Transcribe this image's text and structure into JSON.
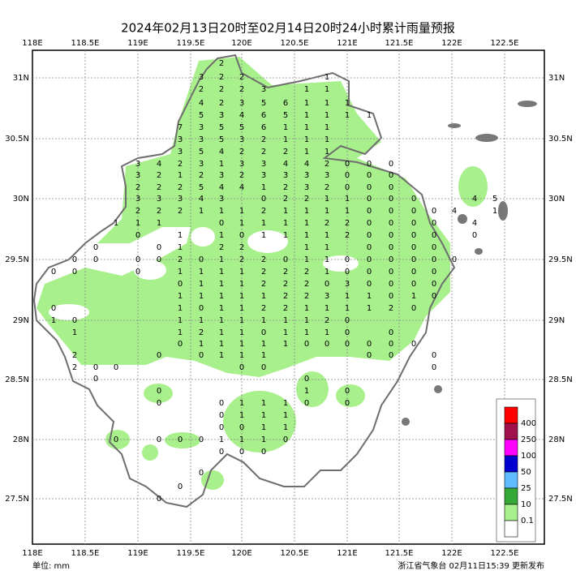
{
  "header": {
    "title": "2024年02月13日20时至02月14日20时24小时累计雨量预报"
  },
  "footer": {
    "unit": "单位: mm",
    "issuer": "浙江省气象台 02月11日15:39 更新发布"
  },
  "lon_ticks": [
    "118E",
    "118.5E",
    "119E",
    "119.5E",
    "120E",
    "120.5E",
    "121E",
    "121.5E",
    "122E",
    "122.5E"
  ],
  "lat_ticks": [
    "31N",
    "30.5N",
    "30N",
    "29.5N",
    "29N",
    "28.5N",
    "28N",
    "27.5N"
  ],
  "legend": {
    "colors": [
      "#ff0000",
      "#a0104a",
      "#ff00ff",
      "#0000d0",
      "#60bcff",
      "#36a836",
      "#a8f08c",
      "#ffffff"
    ],
    "levels": [
      400,
      250,
      100,
      50,
      25,
      10,
      0.1
    ]
  },
  "stations": [
    [
      2
    ],
    [
      3,
      2,
      2,
      1
    ],
    [
      2,
      2,
      2,
      3,
      1,
      1
    ],
    [
      4,
      2,
      3,
      5,
      6,
      1,
      1,
      1
    ],
    [
      5,
      3,
      4,
      6,
      5,
      1,
      1,
      1,
      1
    ],
    [
      7,
      3,
      5,
      5,
      6,
      1,
      1,
      1
    ],
    [
      3,
      3,
      5,
      3,
      2,
      1,
      1,
      1
    ],
    [
      3,
      5,
      4,
      2,
      2,
      2,
      1,
      1
    ],
    [
      3,
      4,
      2,
      3,
      1,
      3,
      3,
      4,
      4,
      2,
      0,
      0,
      0
    ],
    [
      3,
      2,
      1,
      2,
      3,
      2,
      3,
      3,
      3,
      3,
      0,
      0,
      0
    ],
    [
      2,
      2,
      2,
      5,
      4,
      4,
      1,
      2,
      3,
      2,
      0,
      0,
      0
    ],
    [
      3,
      3,
      3,
      4,
      3,
      0,
      2,
      2,
      1,
      1,
      0,
      0,
      0,
      4,
      5
    ],
    [
      2,
      2,
      2,
      1,
      1,
      1,
      2,
      1,
      1,
      1,
      1,
      0,
      0,
      0,
      0,
      4,
      1
    ],
    [
      1,
      1,
      1,
      0,
      1,
      1,
      1,
      1,
      2,
      2,
      0,
      0,
      0,
      0,
      4
    ],
    [
      0,
      1,
      1,
      0,
      1,
      1,
      1,
      1,
      2,
      0,
      0,
      0,
      0,
      0
    ],
    [
      0,
      0,
      1,
      2,
      2,
      1,
      1,
      0,
      0,
      0,
      0
    ],
    [
      0,
      0,
      0,
      0,
      2,
      0,
      1,
      2,
      2,
      0,
      1,
      1,
      0,
      0,
      0,
      0,
      0,
      0
    ],
    [
      0,
      0,
      0,
      1,
      1,
      1,
      1,
      2,
      2,
      2,
      1,
      0,
      0,
      0,
      0,
      0
    ],
    [
      0,
      1,
      1,
      1,
      2,
      2,
      2,
      0,
      3,
      0,
      0,
      0,
      0
    ],
    [
      1,
      1,
      1,
      1,
      1,
      2,
      2,
      3,
      1,
      1,
      0,
      1,
      0
    ],
    [
      0,
      1,
      0,
      1,
      1,
      2,
      2,
      1,
      1,
      1,
      1,
      2,
      0
    ],
    [
      1,
      0,
      1,
      1,
      1,
      1,
      1,
      1,
      1,
      2,
      0
    ],
    [
      1,
      1,
      2,
      1,
      1,
      0,
      1,
      1,
      1,
      0,
      0
    ],
    [
      0,
      1,
      1,
      1,
      1,
      1,
      0,
      0,
      0,
      0,
      0,
      0
    ],
    [
      2,
      0,
      0,
      1,
      1,
      1,
      0,
      0,
      0
    ],
    [
      2,
      0,
      0,
      0,
      0,
      0
    ],
    [
      0,
      0
    ],
    [
      0,
      1,
      0
    ],
    [
      0,
      0,
      1,
      1,
      1,
      0,
      0
    ],
    [
      0,
      1,
      1,
      1
    ],
    [
      0,
      0,
      1,
      1
    ],
    [
      0,
      0,
      0,
      0,
      1,
      1,
      1,
      0
    ],
    [
      0,
      0,
      0
    ],
    [
      0
    ],
    [
      0
    ],
    [
      0
    ]
  ]
}
